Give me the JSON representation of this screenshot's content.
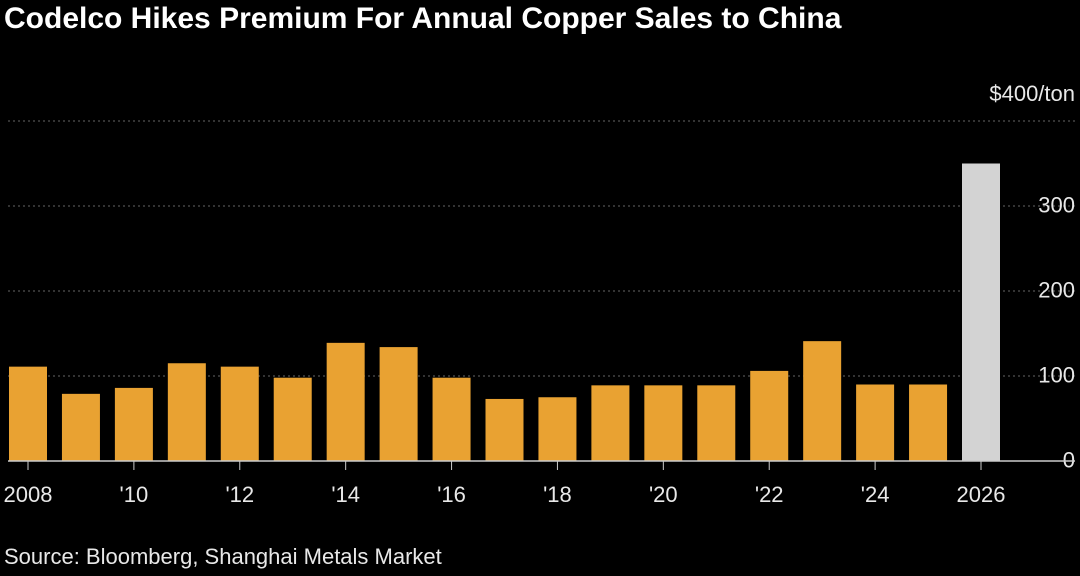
{
  "chart_data": {
    "type": "bar",
    "title": "Codelco Hikes Premium For Annual Copper Sales to China",
    "source": "Source: Bloomberg, Shanghai Metals Market",
    "categories": [
      "2008",
      null,
      "'10",
      null,
      "'12",
      null,
      "'14",
      null,
      "'16",
      null,
      "'18",
      null,
      "'20",
      null,
      "'22",
      null,
      "'24",
      null,
      "2026"
    ],
    "values": [
      111,
      79,
      86,
      115,
      111,
      98,
      139,
      134,
      98,
      73,
      75,
      89,
      89,
      89,
      106,
      141,
      90,
      90,
      350
    ],
    "colors": [
      "#e9a232",
      "#e9a232",
      "#e9a232",
      "#e9a232",
      "#e9a232",
      "#e9a232",
      "#e9a232",
      "#e9a232",
      "#e9a232",
      "#e9a232",
      "#e9a232",
      "#e9a232",
      "#e9a232",
      "#e9a232",
      "#e9a232",
      "#e9a232",
      "#e9a232",
      "#e9a232",
      "#d3d3d3"
    ],
    "ylim": [
      0,
      400
    ],
    "yticks": [
      0,
      100,
      200,
      300,
      {
        "value": 400,
        "label": "$400/ton"
      }
    ],
    "grid": true
  }
}
